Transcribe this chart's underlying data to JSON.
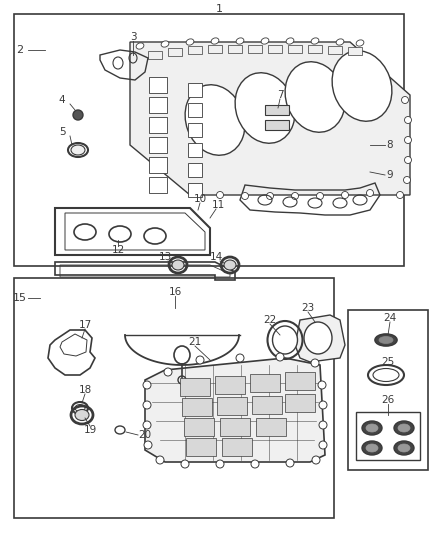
{
  "bg_color": "#ffffff",
  "lc": "#3a3a3a",
  "tc": "#3a3a3a",
  "pf_light": "#f0f0f0",
  "pf_mid": "#d8d8d8",
  "pf_dark": "#aaaaaa",
  "figw": 4.38,
  "figh": 5.33,
  "dpi": 100
}
